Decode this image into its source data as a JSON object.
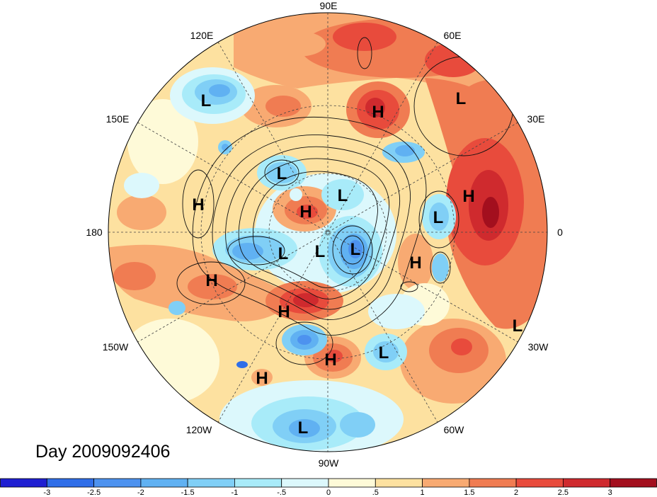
{
  "title": "Day 2009092406",
  "longitude_labels": {
    "lon_90e": "90E",
    "lon_60e": "60E",
    "lon_30e": "30E",
    "lon_0": "0",
    "lon_30w": "30W",
    "lon_60w": "60W",
    "lon_90w": "90W",
    "lon_120w": "120W",
    "lon_150w": "150W",
    "lon_180": "180",
    "lon_150e": "150E",
    "lon_120e": "120E"
  },
  "pressure_centers": [
    "L",
    "L",
    "H",
    "L",
    "L",
    "H",
    "H",
    "H",
    "L",
    "L",
    "L",
    "L",
    "H",
    "H",
    "H",
    "L",
    "L",
    "H",
    "H",
    "L"
  ],
  "colorbar": {
    "colors": [
      "#1f1fd2",
      "#2f6ee8",
      "#4d92ef",
      "#60b1f2",
      "#80cff6",
      "#a8ebf9",
      "#dcf8fc",
      "#fefad8",
      "#fde1a0",
      "#f8aa72",
      "#f07c52",
      "#e84b3c",
      "#cf2a2e",
      "#a30f1e"
    ],
    "ticks": [
      "-3",
      "-2.5",
      "-2",
      "-1.5",
      "-1",
      "-.5",
      "0",
      ".5",
      "1",
      "1.5",
      "2",
      "2.5",
      "3"
    ]
  }
}
